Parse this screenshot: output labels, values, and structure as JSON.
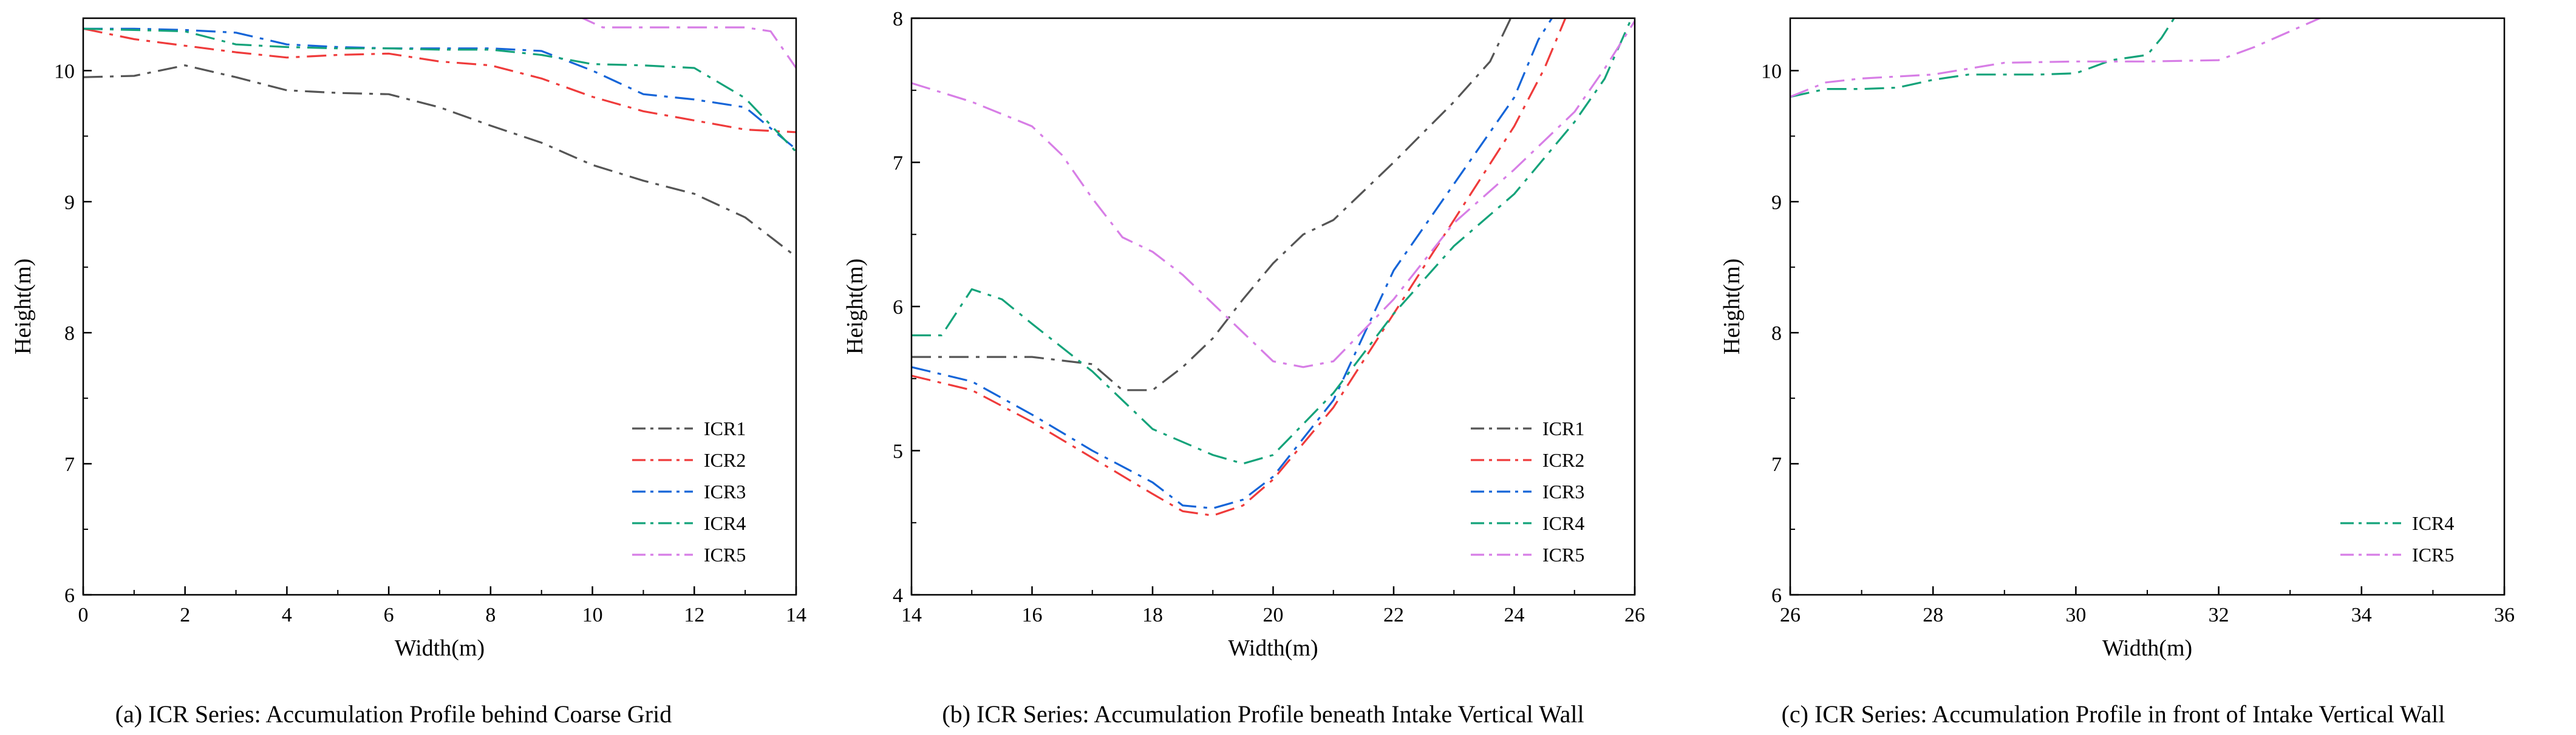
{
  "colors": {
    "ICR1": "#555555",
    "ICR2": "#ef3b3b",
    "ICR3": "#1565d8",
    "ICR4": "#14a37a",
    "ICR5": "#d77ee6"
  },
  "chart_data": [
    {
      "type": "line",
      "caption": "(a) ICR Series: Accumulation Profile behind Coarse Grid",
      "xlabel": "Width(m)",
      "ylabel": "Height(m)",
      "xlim": [
        0,
        14
      ],
      "ylim": [
        6,
        10.4
      ],
      "xticks": [
        0,
        2,
        4,
        6,
        8,
        10,
        12,
        14
      ],
      "yticks": [
        6,
        7,
        8,
        9,
        10
      ],
      "legend_position": "bottom-right",
      "series": [
        {
          "name": "ICR1",
          "x": [
            0,
            1,
            2,
            3,
            4,
            5,
            6,
            7,
            8,
            9,
            10,
            11,
            12,
            13,
            14
          ],
          "y": [
            9.95,
            9.96,
            10.04,
            9.95,
            9.85,
            9.83,
            9.82,
            9.72,
            9.58,
            9.45,
            9.28,
            9.16,
            9.06,
            8.88,
            8.58
          ]
        },
        {
          "name": "ICR2",
          "x": [
            0,
            1,
            2,
            3,
            4,
            5,
            6,
            7,
            8,
            9,
            10,
            11,
            12,
            13,
            14
          ],
          "y": [
            10.32,
            10.24,
            10.19,
            10.14,
            10.1,
            10.12,
            10.13,
            10.07,
            10.04,
            9.94,
            9.8,
            9.69,
            9.62,
            9.55,
            9.53
          ]
        },
        {
          "name": "ICR3",
          "x": [
            0,
            1,
            2,
            3,
            4,
            5,
            6,
            7,
            8,
            9,
            10,
            11,
            12,
            13,
            14
          ],
          "y": [
            10.32,
            10.32,
            10.31,
            10.29,
            10.2,
            10.18,
            10.17,
            10.17,
            10.17,
            10.15,
            10.0,
            9.82,
            9.78,
            9.72,
            9.4
          ]
        },
        {
          "name": "ICR4",
          "x": [
            0,
            1,
            2,
            3,
            4,
            5,
            6,
            7,
            8,
            9,
            10,
            11,
            12,
            13,
            14
          ],
          "y": [
            10.32,
            10.31,
            10.3,
            10.2,
            10.18,
            10.17,
            10.17,
            10.16,
            10.16,
            10.12,
            10.05,
            10.04,
            10.02,
            9.79,
            9.38
          ]
        },
        {
          "name": "ICR5",
          "x": [
            9.7,
            10.2,
            11,
            12,
            13,
            13.5,
            14
          ],
          "y": [
            10.42,
            10.33,
            10.33,
            10.33,
            10.33,
            10.3,
            10.02
          ]
        }
      ]
    },
    {
      "type": "line",
      "caption": "(b) ICR Series: Accumulation Profile beneath Intake Vertical Wall",
      "xlabel": "Width(m)",
      "ylabel": "Height(m)",
      "xlim": [
        14,
        26
      ],
      "ylim": [
        4,
        8
      ],
      "xticks": [
        14,
        16,
        18,
        20,
        22,
        24,
        26
      ],
      "yticks": [
        4,
        5,
        6,
        7,
        8
      ],
      "legend_position": "bottom-right",
      "series": [
        {
          "name": "ICR1",
          "x": [
            14,
            15,
            16,
            17,
            17.5,
            18,
            18.5,
            19,
            19.5,
            20,
            20.5,
            21,
            22,
            23,
            23.6,
            24
          ],
          "y": [
            5.65,
            5.65,
            5.65,
            5.6,
            5.42,
            5.42,
            5.58,
            5.78,
            6.05,
            6.3,
            6.5,
            6.6,
            7.0,
            7.42,
            7.7,
            8.05
          ]
        },
        {
          "name": "ICR2",
          "x": [
            14,
            15,
            16,
            17,
            18,
            18.5,
            19,
            19.5,
            20,
            21,
            22,
            23,
            24,
            24.5,
            24.9
          ],
          "y": [
            5.52,
            5.42,
            5.2,
            4.95,
            4.7,
            4.58,
            4.55,
            4.62,
            4.8,
            5.3,
            5.95,
            6.6,
            7.25,
            7.65,
            8.05
          ]
        },
        {
          "name": "ICR3",
          "x": [
            14,
            15,
            16,
            17,
            18,
            18.5,
            19,
            19.5,
            20,
            21,
            22,
            23,
            24,
            24.4,
            24.7
          ],
          "y": [
            5.58,
            5.48,
            5.25,
            5.0,
            4.78,
            4.62,
            4.6,
            4.66,
            4.82,
            5.35,
            6.25,
            6.85,
            7.45,
            7.85,
            8.05
          ]
        },
        {
          "name": "ICR4",
          "x": [
            14,
            14.5,
            15,
            15.5,
            16,
            17,
            18,
            19,
            19.5,
            20,
            21,
            22,
            23,
            24,
            25,
            25.5,
            26
          ],
          "y": [
            5.8,
            5.8,
            6.12,
            6.05,
            5.88,
            5.55,
            5.15,
            4.97,
            4.91,
            4.97,
            5.4,
            5.95,
            6.42,
            6.78,
            7.28,
            7.58,
            8.05
          ]
        },
        {
          "name": "ICR5",
          "x": [
            14,
            15,
            16,
            16.5,
            17,
            17.5,
            18,
            18.5,
            19,
            19.5,
            20,
            20.5,
            21,
            22,
            23,
            24,
            25,
            25.5,
            26
          ],
          "y": [
            7.55,
            7.42,
            7.25,
            7.05,
            6.75,
            6.48,
            6.38,
            6.22,
            6.02,
            5.82,
            5.62,
            5.58,
            5.62,
            6.05,
            6.58,
            6.95,
            7.35,
            7.65,
            7.98
          ]
        }
      ]
    },
    {
      "type": "line",
      "caption": "(c) ICR Series: Accumulation Profile in front of Intake Vertical Wall",
      "xlabel": "Width(m)",
      "ylabel": "Height(m)",
      "xlim": [
        26,
        36
      ],
      "ylim": [
        6,
        10.4
      ],
      "xticks": [
        26,
        28,
        30,
        32,
        34,
        36
      ],
      "yticks": [
        6,
        7,
        8,
        9,
        10
      ],
      "legend_position": "bottom-right",
      "series": [
        {
          "name": "ICR4",
          "x": [
            26,
            26.5,
            27,
            27.5,
            28,
            28.5,
            29,
            29.5,
            30,
            30.5,
            31,
            31.2,
            31.4
          ],
          "y": [
            9.8,
            9.86,
            9.86,
            9.87,
            9.93,
            9.97,
            9.97,
            9.97,
            9.98,
            10.08,
            10.12,
            10.25,
            10.42
          ]
        },
        {
          "name": "ICR5",
          "x": [
            26,
            26.5,
            27,
            28,
            29,
            30,
            31,
            32,
            32.5,
            33,
            33.5
          ],
          "y": [
            9.8,
            9.91,
            9.94,
            9.97,
            10.06,
            10.07,
            10.07,
            10.08,
            10.18,
            10.3,
            10.42
          ]
        }
      ]
    }
  ]
}
